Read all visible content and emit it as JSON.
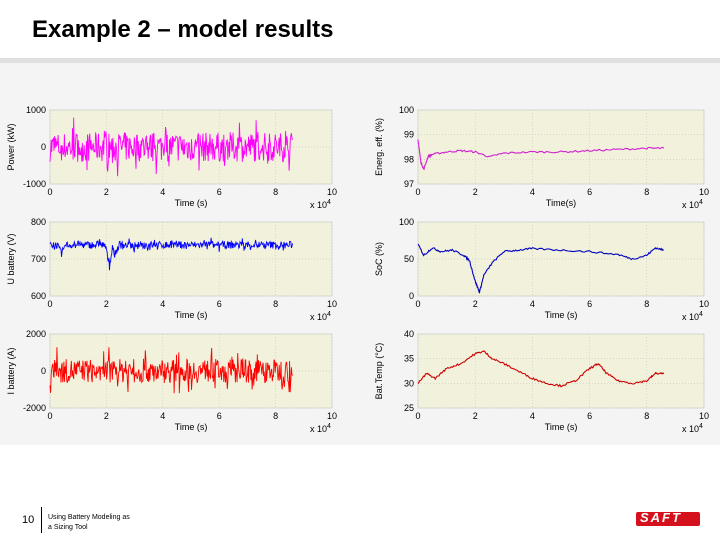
{
  "slide": {
    "title": "Example 2 – model results",
    "number": "10",
    "footer_line1": "Using Battery Modeling as",
    "footer_line2": "a Sizing Tool",
    "logo_text": "SAFT",
    "logo_color": "#d4111d"
  },
  "chart_data": [
    {
      "type": "line",
      "ylabel": "Power (kW)",
      "xlabel": "Time (s)",
      "x_exponent": "x 10^4",
      "xlim": [
        0,
        10
      ],
      "ylim": [
        -1000,
        1000
      ],
      "xticks": [
        "0",
        "2",
        "4",
        "6",
        "8",
        "10"
      ],
      "yticks": [
        "1000",
        "0",
        "-1000"
      ],
      "series": [
        {
          "color": "#ff00ff",
          "style": "noise",
          "center": 0,
          "amp": 800,
          "x_end": 8.6
        }
      ]
    },
    {
      "type": "line",
      "ylabel": "Energ. eff. (%)",
      "xlabel": "Time(s)",
      "x_exponent": "x 10^4",
      "xlim": [
        0,
        10
      ],
      "ylim": [
        97,
        100
      ],
      "xticks": [
        "0",
        "2",
        "4",
        "6",
        "8",
        "10"
      ],
      "yticks": [
        "100",
        "99",
        "98",
        "97"
      ],
      "series": [
        {
          "color": "#d020d0",
          "style": "points",
          "x": [
            0,
            0.1,
            0.2,
            0.35,
            0.5,
            1,
            1.5,
            2,
            2.5,
            3,
            4,
            5,
            6,
            7,
            8,
            8.6
          ],
          "y": [
            98.8,
            97.9,
            97.6,
            98.1,
            98.2,
            98.3,
            98.35,
            98.3,
            98.1,
            98.25,
            98.3,
            98.3,
            98.35,
            98.4,
            98.45,
            98.45
          ]
        }
      ]
    },
    {
      "type": "line",
      "ylabel": "U battery (V)",
      "xlabel": "Time (s)",
      "x_exponent": "x 10^4",
      "xlim": [
        0,
        10
      ],
      "ylim": [
        600,
        800
      ],
      "xticks": [
        "0",
        "2",
        "4",
        "6",
        "8",
        "10"
      ],
      "yticks": [
        "800",
        "700",
        "600"
      ],
      "series": [
        {
          "color": "#0000ff",
          "style": "noise",
          "center": 738,
          "amp": 20,
          "x_end": 8.6,
          "dips": [
            [
              0.4,
              715
            ],
            [
              1,
              740
            ],
            [
              2.1,
              685
            ],
            [
              2.3,
              712
            ],
            [
              3,
              725
            ]
          ]
        }
      ]
    },
    {
      "type": "line",
      "ylabel": "SoC (%)",
      "xlabel": "Time (s)",
      "x_exponent": "x 10^4",
      "xlim": [
        0,
        10
      ],
      "ylim": [
        0,
        100
      ],
      "xticks": [
        "0",
        "2",
        "4",
        "6",
        "8",
        "10"
      ],
      "yticks": [
        "100",
        "50",
        "0"
      ],
      "series": [
        {
          "color": "#0000c0",
          "style": "points",
          "x": [
            0,
            0.2,
            0.5,
            0.8,
            1.2,
            1.6,
            1.8,
            2,
            2.15,
            2.3,
            2.6,
            3,
            3.5,
            4,
            5,
            6,
            7,
            7.5,
            8,
            8.3,
            8.6
          ],
          "y": [
            70,
            55,
            65,
            60,
            62,
            55,
            48,
            20,
            5,
            28,
            45,
            60,
            62,
            64,
            62,
            60,
            56,
            50,
            55,
            65,
            62
          ]
        }
      ]
    },
    {
      "type": "line",
      "ylabel": "I battery (A)",
      "xlabel": "Time (s)",
      "x_exponent": "x 10^4",
      "xlim": [
        0,
        10
      ],
      "ylim": [
        -2000,
        2000
      ],
      "xticks": [
        "0",
        "2",
        "4",
        "6",
        "8",
        "10"
      ],
      "yticks": [
        "2000",
        "0",
        "-2000"
      ],
      "series": [
        {
          "color": "#ff0000",
          "style": "noise",
          "center": 0,
          "amp": 1300,
          "x_end": 8.6
        }
      ]
    },
    {
      "type": "line",
      "ylabel": "Bat.Temp (°C)",
      "xlabel": "Time (s)",
      "x_exponent": "x 10^4",
      "xlim": [
        0,
        10
      ],
      "ylim": [
        25,
        40
      ],
      "xticks": [
        "0",
        "2",
        "4",
        "6",
        "8",
        "10"
      ],
      "yticks": [
        "40",
        "35",
        "30",
        "25"
      ],
      "series": [
        {
          "color": "#cc0000",
          "style": "points",
          "x": [
            0,
            0.3,
            0.6,
            1,
            1.5,
            2,
            2.3,
            2.6,
            3,
            3.5,
            4,
            4.5,
            5,
            5.5,
            6,
            6.3,
            6.6,
            7,
            7.5,
            8,
            8.3,
            8.6
          ],
          "y": [
            30,
            32,
            31,
            33,
            34,
            36,
            36.5,
            35,
            34,
            32.5,
            31,
            30,
            29.5,
            30.5,
            33,
            34,
            32,
            30.5,
            30,
            30.5,
            32,
            32
          ]
        }
      ]
    }
  ]
}
